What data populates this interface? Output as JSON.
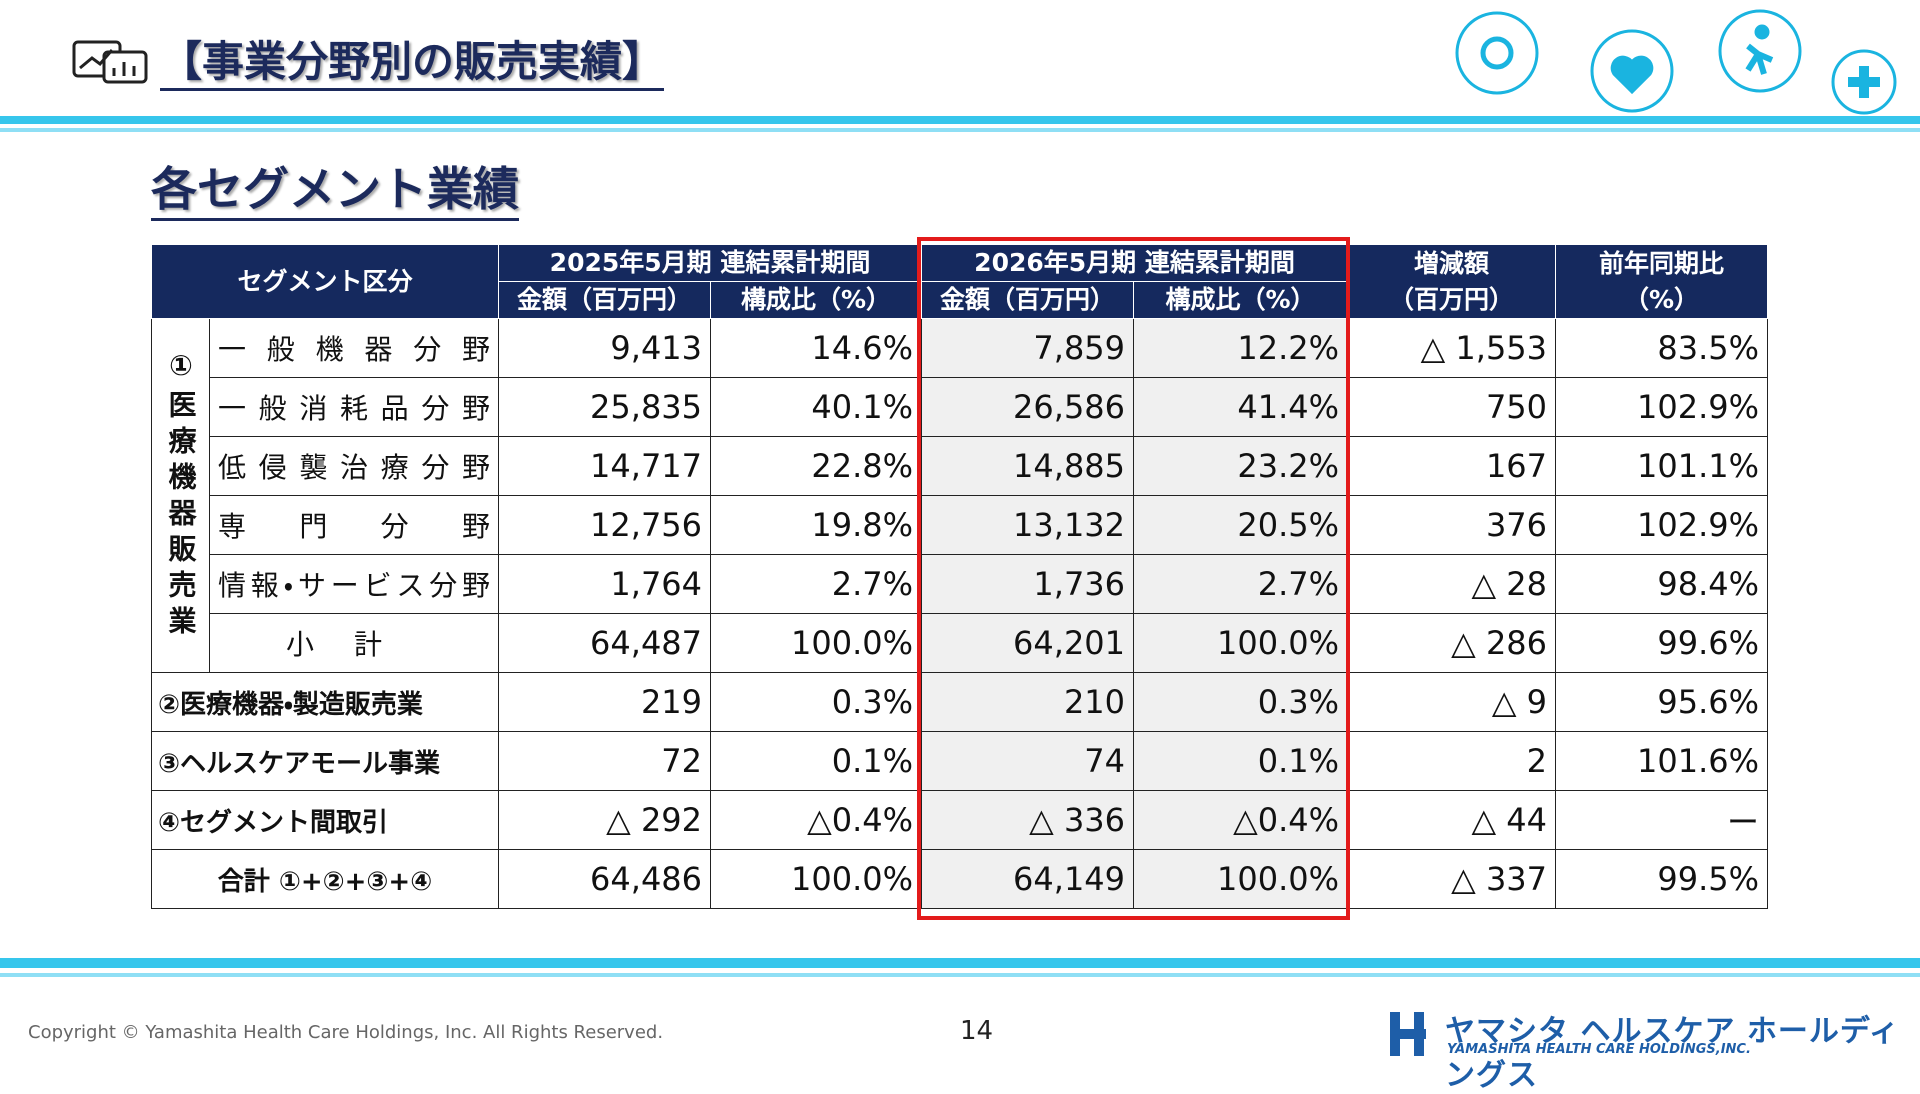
{
  "header": {
    "title": "【事業分野別の販売実績】",
    "subtitle": "各セグメント業績"
  },
  "table": {
    "head": {
      "segment": "セグメント区分",
      "period1": "2025年5月期 連結累計期間",
      "period2": "2026年5月期 連結累計期間",
      "diff": [
        "増減額",
        "（百万円）"
      ],
      "ratio": [
        "前年同期比",
        "（%）"
      ],
      "sub": [
        "金額（百万円）",
        "構成比（%）",
        "金額（百万円）",
        "構成比（%）"
      ]
    },
    "segment1": {
      "label": "①医療機器販売業",
      "rows": [
        {
          "label": "一般機器分野",
          "cells": [
            "9,413",
            "14.6%",
            "7,859",
            "12.2%",
            "△ 1,553",
            "83.5%"
          ]
        },
        {
          "label": "一般消耗品分野",
          "cells": [
            "25,835",
            "40.1%",
            "26,586",
            "41.4%",
            "750",
            "102.9%"
          ]
        },
        {
          "label": "低侵襲治療分野",
          "cells": [
            "14,717",
            "22.8%",
            "14,885",
            "23.2%",
            "167",
            "101.1%"
          ]
        },
        {
          "label": "専門分野",
          "cells": [
            "12,756",
            "19.8%",
            "13,132",
            "20.5%",
            "376",
            "102.9%"
          ]
        },
        {
          "label": "情報・サービス分野",
          "cells": [
            "1,764",
            "2.7%",
            "1,736",
            "2.7%",
            "△ 28",
            "98.4%"
          ]
        }
      ],
      "subtotal": {
        "label": "小計",
        "cells": [
          "64,487",
          "100.0%",
          "64,201",
          "100.0%",
          "△ 286",
          "99.6%"
        ]
      }
    },
    "others": [
      {
        "label": "②医療機器・製造販売業",
        "cells": [
          "219",
          "0.3%",
          "210",
          "0.3%",
          "△ 9",
          "95.6%"
        ]
      },
      {
        "label": "③ヘルスケアモール事業",
        "cells": [
          "72",
          "0.1%",
          "74",
          "0.1%",
          "2",
          "101.6%"
        ]
      },
      {
        "label": "④セグメント間取引",
        "cells": [
          "△ 292",
          "△0.4%",
          "△ 336",
          "△0.4%",
          "△ 44",
          "ー"
        ]
      }
    ],
    "total": {
      "label": "合計 ①+②+③+④",
      "cells": [
        "64,486",
        "100.0%",
        "64,149",
        "100.0%",
        "△ 337",
        "99.5%"
      ]
    }
  },
  "footer": {
    "copyright": "Copyright © Yamashita Health Care Holdings, Inc. All Rights Reserved.",
    "page": "14",
    "logo": "ヤマシタ ヘルスケア ホールディングス",
    "logo_sub": "YAMASHITA HEALTH CARE HOLDINGS,INC."
  }
}
